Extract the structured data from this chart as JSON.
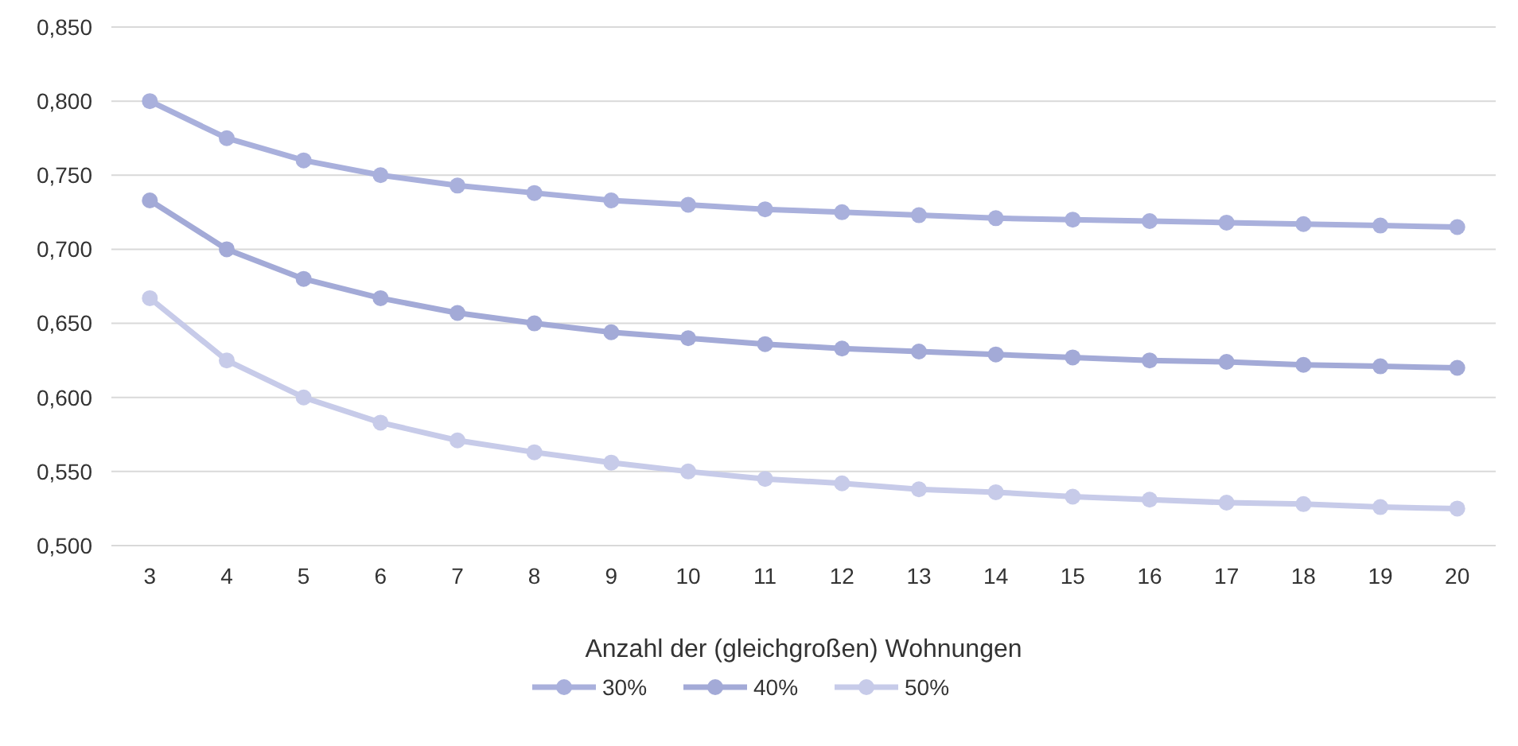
{
  "chart_data": {
    "type": "line",
    "xlabel": "Anzahl der (gleichgroßen) Wohnungen",
    "categories": [
      "3",
      "4",
      "5",
      "6",
      "7",
      "8",
      "9",
      "10",
      "11",
      "12",
      "13",
      "14",
      "15",
      "16",
      "17",
      "18",
      "19",
      "20"
    ],
    "series": [
      {
        "name": "30%",
        "color": "#a9b0dc",
        "values": [
          0.8,
          0.775,
          0.76,
          0.75,
          0.743,
          0.738,
          0.733,
          0.73,
          0.727,
          0.725,
          0.723,
          0.721,
          0.72,
          0.719,
          0.718,
          0.717,
          0.716,
          0.715
        ]
      },
      {
        "name": "40%",
        "color": "#a3aad7",
        "values": [
          0.733,
          0.7,
          0.68,
          0.667,
          0.657,
          0.65,
          0.644,
          0.64,
          0.636,
          0.633,
          0.631,
          0.629,
          0.627,
          0.625,
          0.624,
          0.622,
          0.621,
          0.62
        ]
      },
      {
        "name": "50%",
        "color": "#c7cbe9",
        "values": [
          0.667,
          0.625,
          0.6,
          0.583,
          0.571,
          0.563,
          0.556,
          0.55,
          0.545,
          0.542,
          0.538,
          0.536,
          0.533,
          0.531,
          0.529,
          0.528,
          0.526,
          0.525
        ]
      }
    ],
    "ylim": [
      0.5,
      0.85
    ],
    "yticks": [
      {
        "value": 0.5,
        "label": "0,500"
      },
      {
        "value": 0.55,
        "label": "0,550"
      },
      {
        "value": 0.6,
        "label": "0,600"
      },
      {
        "value": 0.65,
        "label": "0,650"
      },
      {
        "value": 0.7,
        "label": "0,700"
      },
      {
        "value": 0.75,
        "label": "0,750"
      },
      {
        "value": 0.8,
        "label": "0,800"
      },
      {
        "value": 0.85,
        "label": "0,850"
      }
    ],
    "grid": "y",
    "legend": "bottom",
    "marker": "circle",
    "line_style": "solid"
  }
}
